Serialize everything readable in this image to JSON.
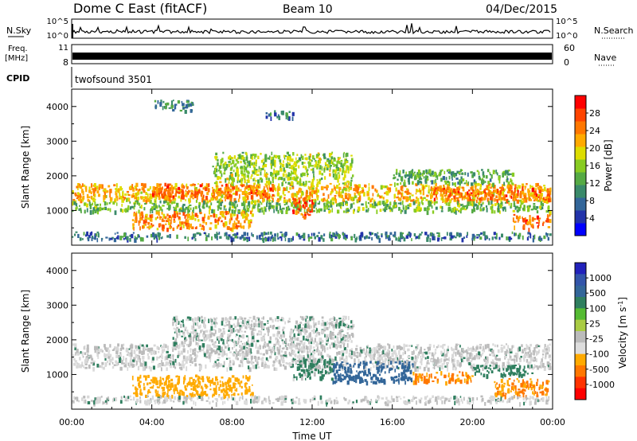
{
  "header": {
    "station": "Dome C East (fitACF)",
    "beam": "Beam 10",
    "date": "04/Dec/2015"
  },
  "panels": {
    "nsky": {
      "label": "N.Sky",
      "tick_top": "10^5",
      "tick_bottom": "10^0"
    },
    "nsearch": {
      "label": "N.Search",
      "tick_top": "10^5",
      "tick_bottom": "10^0"
    },
    "freq": {
      "label": "Freq.",
      "unit": "[MHz]",
      "tick_top": "11",
      "tick_bottom": "8"
    },
    "nave": {
      "label": "Nave",
      "tick_top": "60",
      "tick_bottom": "0"
    },
    "cpid": {
      "label": "CPID",
      "value": "twofsound 3501"
    }
  },
  "colors": {
    "power": [
      "#0000ff",
      "#2233aa",
      "#336699",
      "#3a8a6a",
      "#55aa44",
      "#88cc22",
      "#dddd00",
      "#ffaa00",
      "#ff7700",
      "#ff4400",
      "#ff0000"
    ],
    "velocity": [
      "#2222bb",
      "#3355aa",
      "#336699",
      "#2f7f5f",
      "#55bb33",
      "#aacc44",
      "#bbbbbb",
      "#dddddd",
      "#ffaa00",
      "#ff7700",
      "#ff3300",
      "#ff0000"
    ]
  },
  "chart_data": [
    {
      "type": "heatmap",
      "name": "Power",
      "ylabel": "Slant Range [km]",
      "xlim": [
        "00:00",
        "24:00"
      ],
      "ylim": [
        0,
        4500
      ],
      "y_ticks": [
        1000,
        2000,
        3000,
        4000
      ],
      "colorbar": {
        "label": "Power [dB]",
        "ticks": [
          4,
          8,
          12,
          16,
          20,
          24,
          28
        ],
        "range": [
          0,
          32
        ]
      },
      "regions": [
        {
          "t": [
            0.0,
            24.0
          ],
          "r": [
            1300,
            1800
          ],
          "value": 22
        },
        {
          "t": [
            4.0,
            10.0
          ],
          "r": [
            1400,
            1800
          ],
          "value": 26
        },
        {
          "t": [
            18.0,
            24.0
          ],
          "r": [
            1300,
            1700
          ],
          "value": 26
        },
        {
          "t": [
            0.0,
            24.0
          ],
          "r": [
            1000,
            1300
          ],
          "value": 14
        },
        {
          "t": [
            3.0,
            9.0
          ],
          "r": [
            500,
            1000
          ],
          "value": 24
        },
        {
          "t": [
            7.0,
            14.0
          ],
          "r": [
            1800,
            2700
          ],
          "value": 16
        },
        {
          "t": [
            16.0,
            22.0
          ],
          "r": [
            1800,
            2200
          ],
          "value": 12
        },
        {
          "t": [
            22.0,
            24.0
          ],
          "r": [
            500,
            900
          ],
          "value": 26
        },
        {
          "t": [
            11.0,
            12.0
          ],
          "r": [
            800,
            1400
          ],
          "value": 28
        },
        {
          "t": [
            4.0,
            6.0
          ],
          "r": [
            3900,
            4200
          ],
          "value": 10
        },
        {
          "t": [
            9.5,
            11.0
          ],
          "r": [
            3700,
            3900
          ],
          "value": 8
        },
        {
          "t": [
            0.0,
            24.0
          ],
          "r": [
            200,
            400
          ],
          "value": 8
        }
      ]
    },
    {
      "type": "heatmap",
      "name": "Velocity",
      "ylabel": "Slant Range [km]",
      "xlabel": "Time UT",
      "x_ticks": [
        "00:00",
        "04:00",
        "08:00",
        "12:00",
        "16:00",
        "20:00",
        "00:00"
      ],
      "ylim": [
        0,
        4500
      ],
      "y_ticks": [
        1000,
        2000,
        3000,
        4000
      ],
      "colorbar": {
        "label": "Velocity [m s-1]",
        "ticks": [
          1000,
          500,
          100,
          25,
          -25,
          -100,
          -500,
          -1000
        ]
      },
      "regions": [
        {
          "t": [
            0.0,
            24.0
          ],
          "r": [
            1200,
            1900
          ],
          "value": 0
        },
        {
          "t": [
            5.0,
            14.0
          ],
          "r": [
            1900,
            2700
          ],
          "value": 10
        },
        {
          "t": [
            3.0,
            9.0
          ],
          "r": [
            400,
            1000
          ],
          "value": -200
        },
        {
          "t": [
            13.0,
            17.0
          ],
          "r": [
            800,
            1400
          ],
          "value": 150
        },
        {
          "t": [
            17.0,
            20.0
          ],
          "r": [
            800,
            1100
          ],
          "value": -300
        },
        {
          "t": [
            21.0,
            24.0
          ],
          "r": [
            400,
            900
          ],
          "value": -300
        },
        {
          "t": [
            20.0,
            23.0
          ],
          "r": [
            1000,
            1300
          ],
          "value": 60
        },
        {
          "t": [
            11.0,
            13.0
          ],
          "r": [
            900,
            1500
          ],
          "value": 40
        },
        {
          "t": [
            0.0,
            24.0
          ],
          "r": [
            200,
            400
          ],
          "value": 0
        }
      ]
    }
  ]
}
